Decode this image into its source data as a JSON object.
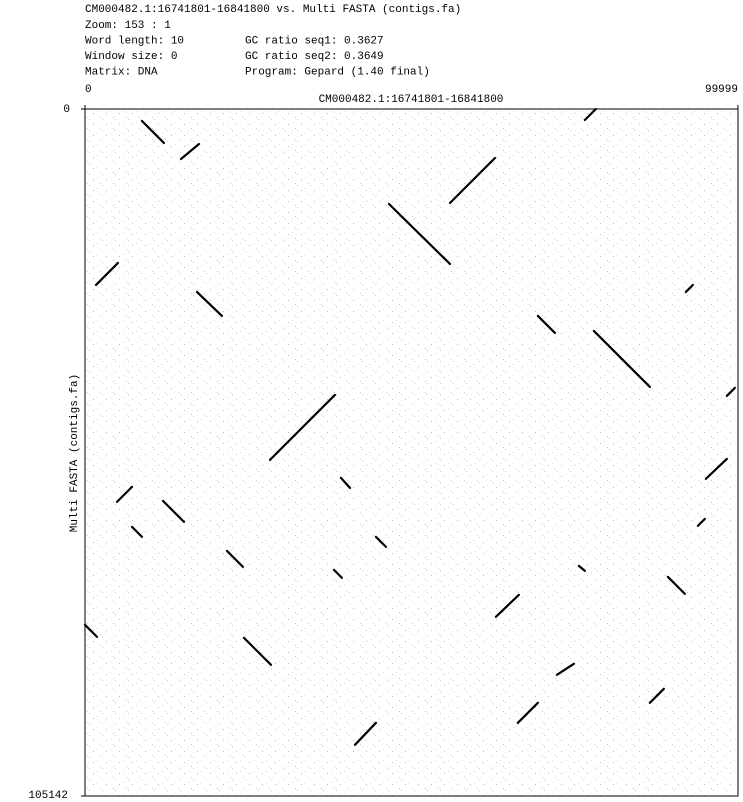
{
  "chart_data": {
    "type": "dotplot",
    "title": "CM000482.1:16741801-16841800 vs. Multi FASTA (contigs.fa)",
    "info_left": [
      "Zoom: 153 : 1",
      "Word length: 10",
      "Window size: 0",
      "Matrix: DNA"
    ],
    "info_right": [
      "GC ratio seq1: 0.3627",
      "GC ratio seq2: 0.3649",
      "Program: Gepard (1.40 final)"
    ],
    "x_label": "CM000482.1:16741801-16841800",
    "y_label": "Multi FASTA (contigs.fa)",
    "xlim": [
      0,
      99999
    ],
    "xticks": [
      0,
      99999
    ],
    "ylim": [
      0,
      105142
    ],
    "yticks": [
      0,
      105142
    ],
    "y_inverted": true,
    "color": "#000000",
    "segments": [
      {
        "x": [
          8727,
          12095
        ],
        "y": [
          1836,
          5202
        ]
      },
      {
        "x": [
          14698,
          17453
        ],
        "y": [
          7650,
          5355
        ]
      },
      {
        "x": [
          46552,
          55891
        ],
        "y": [
          14535,
          23715
        ]
      },
      {
        "x": [
          55891,
          62781
        ],
        "y": [
          14382,
          7497
        ]
      },
      {
        "x": [
          1684,
          5052
        ],
        "y": [
          26928,
          23562
        ]
      },
      {
        "x": [
          17146,
          20974
        ],
        "y": [
          28000,
          31671
        ]
      },
      {
        "x": [
          69357,
          71960
        ],
        "y": [
          31671,
          34272
        ]
      },
      {
        "x": [
          77930,
          86504
        ],
        "y": [
          33966,
          42534
        ]
      },
      {
        "x": [
          76552,
          78236
        ],
        "y": [
          1683,
          0
        ]
      },
      {
        "x": [
          28324,
          38276
        ],
        "y": [
          53703,
          43758
        ]
      },
      {
        "x": [
          92014,
          93086
        ],
        "y": [
          28000,
          26928
        ]
      },
      {
        "x": [
          4899,
          7196
        ],
        "y": [
          60129,
          57834
        ]
      },
      {
        "x": [
          11943,
          15158
        ],
        "y": [
          59976,
          63189
        ]
      },
      {
        "x": [
          7196,
          8727
        ],
        "y": [
          63954,
          65484
        ]
      },
      {
        "x": [
          39194,
          40572
        ],
        "y": [
          56457,
          57987
        ]
      },
      {
        "x": [
          44557,
          46088
        ],
        "y": [
          65484,
          67014
        ]
      },
      {
        "x": [
          21740,
          24190
        ],
        "y": [
          67626,
          70074
        ]
      },
      {
        "x": [
          38123,
          39348
        ],
        "y": [
          70533,
          71757
        ]
      },
      {
        "x": [
          95075,
          98290
        ],
        "y": [
          56610,
          53550
        ]
      },
      {
        "x": [
          98290,
          99515
        ],
        "y": [
          43911,
          42687
        ]
      },
      {
        "x": [
          89259,
          91862
        ],
        "y": [
          71604,
          74205
        ]
      },
      {
        "x": [
          62924,
          66446
        ],
        "y": [
          77724,
          74358
        ]
      },
      {
        "x": [
          0,
          1837
        ],
        "y": [
          78948,
          80784
        ]
      },
      {
        "x": [
          24343,
          28477
        ],
        "y": [
          80937,
          85068
        ]
      },
      {
        "x": [
          66293,
          69357
        ],
        "y": [
          93942,
          90882
        ]
      },
      {
        "x": [
          86504,
          88647
        ],
        "y": [
          90882,
          88740
        ]
      },
      {
        "x": [
          41343,
          44557
        ],
        "y": [
          97308,
          93942
        ]
      },
      {
        "x": [
          72266,
          74868
        ],
        "y": [
          86598,
          84915
        ]
      },
      {
        "x": [
          75633,
          76552
        ],
        "y": [
          69921,
          70686
        ]
      },
      {
        "x": [
          93851,
          94923
        ],
        "y": [
          63801,
          62730
        ]
      }
    ]
  }
}
